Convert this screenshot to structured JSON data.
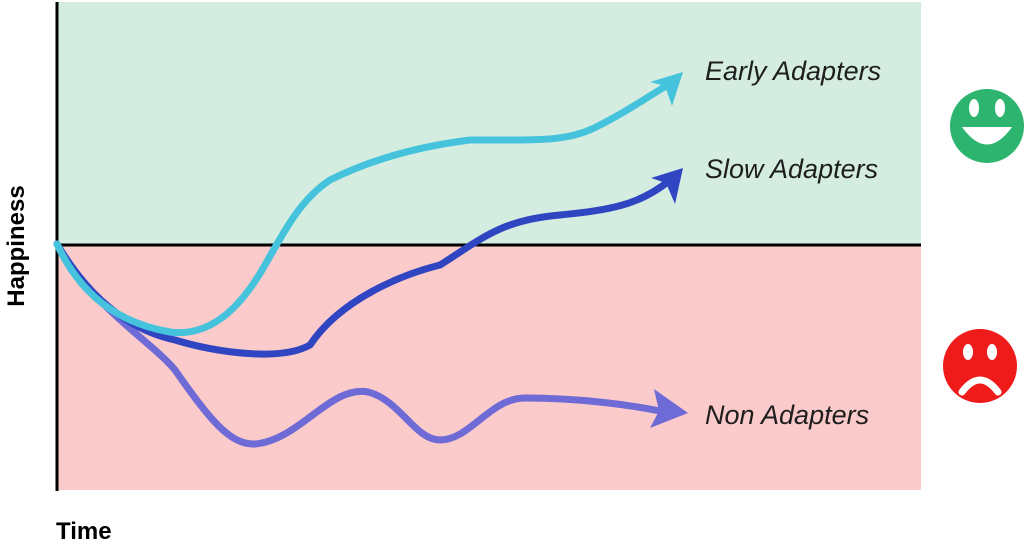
{
  "diagram": {
    "x_axis_label": "Time",
    "y_axis_label": "Happiness",
    "zones": {
      "positive": {
        "color": "#d4ede0",
        "icon": "smiley-happy-icon",
        "icon_color": "#2db56f"
      },
      "negative": {
        "color": "#fbcaca",
        "icon": "smiley-sad-icon",
        "icon_color": "#ef1b1b"
      }
    },
    "curves": [
      {
        "key": "early",
        "label": "Early Adapters",
        "color": "#45c3dd"
      },
      {
        "key": "slow",
        "label": "Slow Adapters",
        "color": "#2f45c2"
      },
      {
        "key": "non",
        "label": "Non Adapters",
        "color": "#6e6ad6"
      }
    ]
  }
}
